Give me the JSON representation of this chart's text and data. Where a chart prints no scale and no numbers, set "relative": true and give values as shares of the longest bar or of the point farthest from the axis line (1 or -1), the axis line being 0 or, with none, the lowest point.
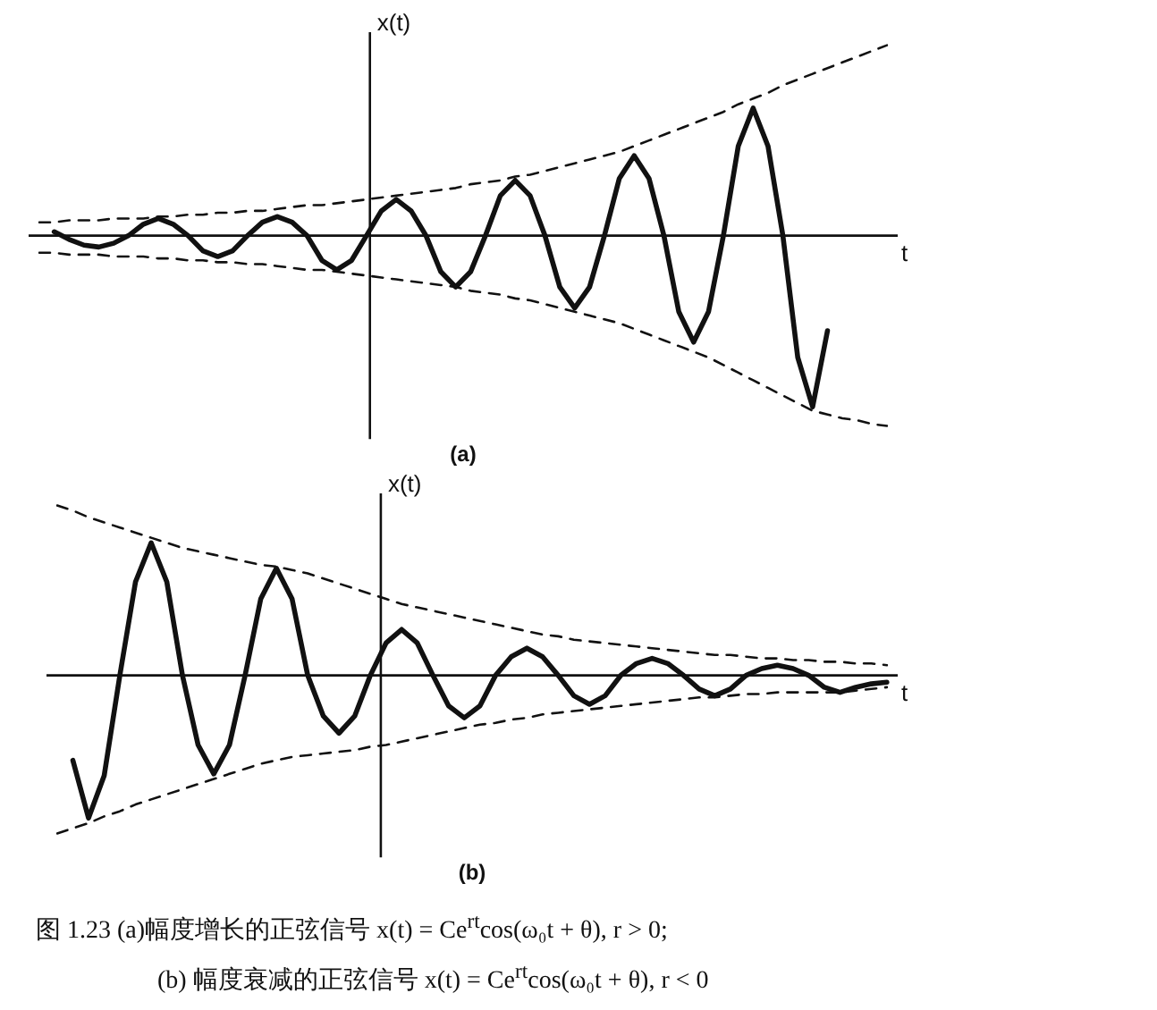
{
  "chart_data": [
    {
      "type": "line",
      "title": "(a)",
      "xlabel": "t",
      "ylabel": "x(t)",
      "relative": true,
      "marker": "none",
      "categories": [
        null,
        null,
        null,
        null,
        null,
        null,
        null,
        null,
        null,
        null,
        null,
        null,
        null,
        null,
        null,
        null,
        null,
        null,
        null,
        null,
        null,
        null,
        null,
        null,
        null,
        null,
        null,
        null,
        null,
        null,
        null,
        null,
        null,
        null,
        null,
        null,
        null,
        null,
        null,
        null,
        null,
        null,
        null,
        null,
        null,
        null,
        null,
        null,
        null,
        null,
        null,
        null,
        null,
        null,
        null,
        null,
        null,
        null
      ],
      "series": [
        {
          "color": "#111111",
          "line_style": "solid",
          "values": [
            null,
            0.02,
            -0.02,
            -0.05,
            -0.06,
            -0.04,
            0,
            0.06,
            0.09,
            0.06,
            0,
            -0.08,
            -0.11,
            -0.08,
            0,
            0.07,
            0.1,
            0.07,
            0,
            -0.13,
            -0.18,
            -0.13,
            0,
            0.13,
            0.19,
            0.13,
            0,
            -0.19,
            -0.27,
            -0.19,
            0,
            0.21,
            0.29,
            0.21,
            0,
            -0.27,
            -0.38,
            -0.27,
            0,
            0.3,
            0.42,
            0.3,
            0,
            -0.4,
            -0.56,
            -0.4,
            0,
            0.47,
            0.67,
            0.47,
            0,
            -0.64,
            -0.9,
            -0.5,
            null,
            null,
            null,
            null
          ]
        },
        {
          "color": "#111111",
          "line_style": "dashed",
          "values": [
            0.07,
            0.07,
            0.08,
            0.08,
            0.08,
            0.09,
            0.09,
            0.09,
            0.1,
            0.1,
            0.11,
            0.11,
            0.12,
            0.12,
            0.13,
            0.13,
            0.14,
            0.15,
            0.16,
            0.16,
            0.17,
            0.18,
            0.19,
            0.2,
            0.21,
            0.22,
            0.23,
            0.24,
            0.25,
            0.27,
            0.28,
            0.29,
            0.31,
            0.32,
            0.34,
            0.36,
            0.38,
            0.4,
            0.42,
            0.44,
            0.47,
            0.5,
            0.53,
            0.56,
            0.59,
            0.62,
            0.65,
            0.69,
            0.72,
            0.75,
            0.79,
            0.82,
            0.85,
            0.88,
            0.91,
            0.94,
            0.97,
            1.0
          ]
        },
        {
          "color": "#111111",
          "line_style": "dashed",
          "values": [
            -0.09,
            -0.09,
            -0.1,
            -0.1,
            -0.1,
            -0.11,
            -0.11,
            -0.11,
            -0.12,
            -0.12,
            -0.13,
            -0.13,
            -0.14,
            -0.14,
            -0.15,
            -0.15,
            -0.16,
            -0.17,
            -0.18,
            -0.18,
            -0.19,
            -0.2,
            -0.21,
            -0.22,
            -0.23,
            -0.24,
            -0.25,
            -0.26,
            -0.27,
            -0.29,
            -0.3,
            -0.31,
            -0.33,
            -0.34,
            -0.36,
            -0.38,
            -0.4,
            -0.42,
            -0.44,
            -0.46,
            -0.49,
            -0.52,
            -0.55,
            -0.58,
            -0.61,
            -0.64,
            -0.68,
            -0.72,
            -0.76,
            -0.8,
            -0.84,
            -0.88,
            -0.92,
            -0.94,
            -0.96,
            -0.97,
            -0.99,
            -1.0
          ]
        }
      ]
    },
    {
      "type": "line",
      "title": "(b)",
      "xlabel": "t",
      "ylabel": "x(t)",
      "relative": true,
      "marker": "none",
      "categories": [
        null,
        null,
        null,
        null,
        null,
        null,
        null,
        null,
        null,
        null,
        null,
        null,
        null,
        null,
        null,
        null,
        null,
        null,
        null,
        null,
        null,
        null,
        null,
        null,
        null,
        null,
        null,
        null,
        null,
        null,
        null,
        null,
        null,
        null,
        null,
        null,
        null,
        null,
        null,
        null,
        null,
        null,
        null,
        null,
        null,
        null,
        null,
        null,
        null,
        null,
        null,
        null,
        null,
        null
      ],
      "series": [
        {
          "color": "#111111",
          "line_style": "solid",
          "values": [
            null,
            -0.5,
            -0.84,
            -0.59,
            0,
            0.55,
            0.78,
            0.55,
            0,
            -0.41,
            -0.58,
            -0.41,
            0,
            0.45,
            0.63,
            0.45,
            0,
            -0.24,
            -0.34,
            -0.24,
            0,
            0.19,
            0.27,
            0.19,
            0,
            -0.18,
            -0.25,
            -0.18,
            0,
            0.11,
            0.16,
            0.11,
            0,
            -0.12,
            -0.17,
            -0.12,
            0,
            0.07,
            0.1,
            0.07,
            0,
            -0.08,
            -0.12,
            -0.08,
            0,
            0.04,
            0.06,
            0.04,
            0,
            -0.07,
            -0.1,
            -0.07,
            -0.05,
            -0.04
          ]
        },
        {
          "color": "#111111",
          "line_style": "dashed",
          "values": [
            1.0,
            0.97,
            0.93,
            0.9,
            0.87,
            0.84,
            0.81,
            0.78,
            0.75,
            0.73,
            0.71,
            0.69,
            0.67,
            0.65,
            0.64,
            0.62,
            0.6,
            0.57,
            0.54,
            0.51,
            0.48,
            0.45,
            0.42,
            0.4,
            0.38,
            0.36,
            0.34,
            0.32,
            0.3,
            0.28,
            0.26,
            0.24,
            0.23,
            0.21,
            0.2,
            0.19,
            0.18,
            0.17,
            0.16,
            0.15,
            0.14,
            0.13,
            0.12,
            0.12,
            0.11,
            0.1,
            0.1,
            0.09,
            0.09,
            0.08,
            0.08,
            0.07,
            0.07,
            0.06
          ]
        },
        {
          "color": "#111111",
          "line_style": "dashed",
          "values": [
            -0.93,
            -0.9,
            -0.87,
            -0.83,
            -0.8,
            -0.76,
            -0.73,
            -0.7,
            -0.67,
            -0.64,
            -0.61,
            -0.58,
            -0.55,
            -0.52,
            -0.5,
            -0.48,
            -0.47,
            -0.46,
            -0.45,
            -0.44,
            -0.42,
            -0.41,
            -0.39,
            -0.37,
            -0.35,
            -0.33,
            -0.31,
            -0.29,
            -0.28,
            -0.26,
            -0.25,
            -0.23,
            -0.22,
            -0.21,
            -0.2,
            -0.19,
            -0.18,
            -0.17,
            -0.16,
            -0.15,
            -0.14,
            -0.13,
            -0.13,
            -0.12,
            -0.11,
            -0.11,
            -0.1,
            -0.1,
            -0.1,
            -0.1,
            -0.1,
            -0.09,
            -0.08,
            -0.07
          ]
        }
      ],
      "annotations": [
        "图 1.23  (a)幅度增长的正弦信号 x(t) = Ce$^{rt}$cos(ω₀t + θ), r > 0;",
        "(b) 幅度衰减的正弦信号 x(t) = Ce$^{rt}$cos(ω₀t + θ), r < 0"
      ]
    }
  ]
}
